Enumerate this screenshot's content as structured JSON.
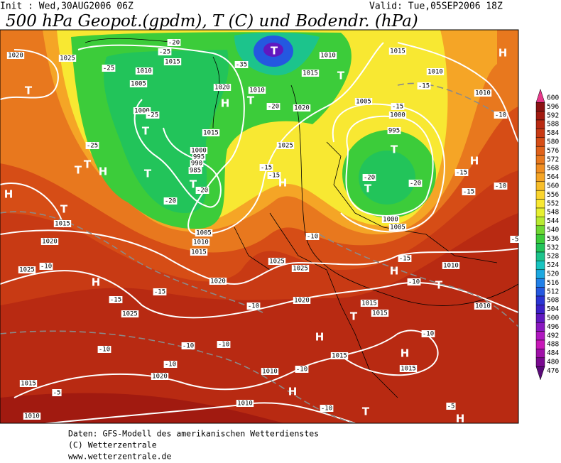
{
  "header": {
    "init": "Init : Wed,30AUG2006 06Z",
    "valid": "Valid: Tue,05SEP2006 18Z",
    "title": "500 hPa Geopot.(gpdm), T (C) und Bodendr. (hPa)"
  },
  "footer": {
    "lines": [
      "Daten: GFS-Modell des amerikanischen Wetterdienstes",
      "(C) Wetterzentrale",
      "www.wetterzentrale.de"
    ]
  },
  "colorbar": {
    "levels": [
      600,
      596,
      592,
      588,
      584,
      580,
      576,
      572,
      568,
      564,
      560,
      556,
      552,
      548,
      544,
      540,
      536,
      532,
      528,
      524,
      520,
      516,
      512,
      508,
      504,
      500,
      496,
      492,
      488,
      484,
      480,
      476
    ],
    "colors": [
      "#e8388a",
      "#8b1212",
      "#a11a10",
      "#b82a12",
      "#c83a14",
      "#d64d16",
      "#e0621a",
      "#e8781e",
      "#f08e22",
      "#f5a526",
      "#f8be2a",
      "#fad42e",
      "#f8e832",
      "#e6f030",
      "#b8ea30",
      "#6fd832",
      "#3ccc3a",
      "#22c45a",
      "#1cc48c",
      "#18c4c0",
      "#1ca8e0",
      "#2080e8",
      "#2458e0",
      "#2a34d4",
      "#3a20c8",
      "#6018c0",
      "#8a18c0",
      "#b018c0",
      "#c818b8",
      "#a010a8",
      "#7a0a90",
      "#5a0a78"
    ]
  },
  "map": {
    "labels": [
      "1020",
      "1025",
      "1015",
      "1010",
      "1005",
      "1000",
      "1020",
      "1010",
      "1015",
      "1000",
      "995",
      "990",
      "985",
      "1010",
      "1015",
      "1015",
      "1010",
      "1005",
      "1000",
      "995",
      "1025",
      "1020",
      "1005",
      "1010",
      "1015",
      "1000",
      "1005",
      "1015",
      "1020",
      "1025",
      "1020",
      "1025",
      "1025",
      "1020",
      "1025",
      "1015",
      "1015",
      "1015",
      "1015",
      "1010",
      "1010",
      "1010",
      "1020",
      "1015",
      "1010",
      "1010",
      "1010",
      "-20",
      "-25",
      "-25",
      "-25",
      "-25",
      "-20",
      "-20",
      "-35",
      "-20",
      "-15",
      "-15",
      "-20",
      "-20",
      "-15",
      "-15",
      "-15",
      "-10",
      "-10",
      "-15",
      "-10",
      "-10",
      "-15",
      "-15",
      "-10",
      "-15",
      "-10",
      "-10",
      "-10",
      "-10",
      "-10",
      "-10",
      "-10",
      "-10",
      "-5",
      "-5",
      "-5",
      "T",
      "T",
      "T",
      "T",
      "T",
      "T",
      "T",
      "T",
      "T",
      "T",
      "T",
      "T",
      "T",
      "T",
      "T",
      "H",
      "H",
      "H",
      "H",
      "H",
      "H",
      "H",
      "H",
      "H",
      "H",
      "H",
      "H"
    ]
  }
}
